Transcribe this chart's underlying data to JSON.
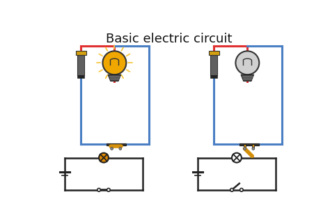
{
  "title": "Basic electric circuit",
  "title_fontsize": 13,
  "background_color": "#ffffff",
  "wire_red": "#e03030",
  "wire_blue": "#4a7fc4",
  "wire_dark": "#222222",
  "bat_gray": "#606060",
  "bat_gold": "#d4a010",
  "bat_dark": "#222222",
  "bulb_on_fill": "#f0a800",
  "bulb_on_glow": "#f8c840",
  "bulb_off_fill": "#d0d0d0",
  "bulb_outline": "#333333",
  "switch_color": "#d4900a",
  "switch_base": "#555555",
  "sym_bulb_on": "#e08800",
  "sym_bulb_off": "#ffffff",
  "sym_line": "#222222"
}
